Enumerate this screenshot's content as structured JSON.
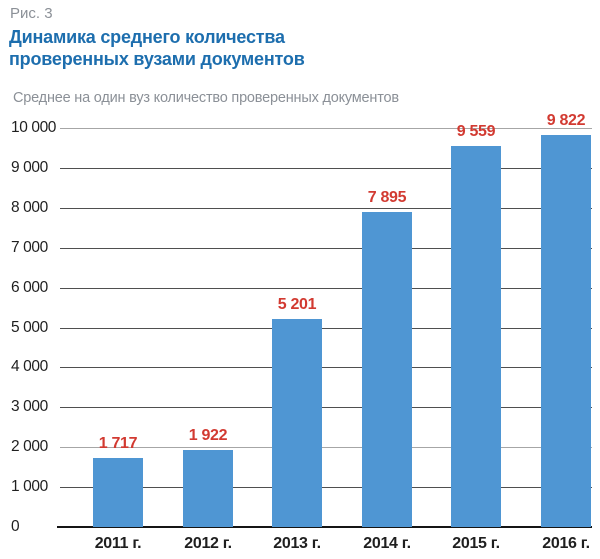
{
  "figure_label": "Рис. 3",
  "title_line1": "Динамика среднего количества",
  "title_line2": "проверенных вузами документов",
  "subtitle": "Среднее на один вуз количество проверенных документов",
  "chart_data": {
    "type": "bar",
    "categories": [
      "2011 г.",
      "2012 г.",
      "2013 г.",
      "2014 г.",
      "2015 г.",
      "2016 г."
    ],
    "values": [
      1717,
      1922,
      5201,
      7895,
      9559,
      9822
    ],
    "value_labels": [
      "1 717",
      "1 922",
      "5 201",
      "7 895",
      "9 559",
      "9 822"
    ],
    "title": "Динамика среднего количества проверенных вузами документов",
    "xlabel": "",
    "ylabel": "Среднее на один вуз количество проверенных документов",
    "ylim": [
      0,
      10000
    ],
    "y_tick_step": 1000,
    "y_tick_labels_top_down": [
      "10 000",
      "9 000",
      "8 000",
      "7 000",
      "6 000",
      "5 000",
      "4 000",
      "3 000",
      "2 000",
      "1 000",
      "0"
    ],
    "grid": true,
    "light_gridlines_at": [
      10000,
      2000
    ],
    "legend": "none",
    "colors": {
      "bar": "#4F96D3",
      "value_label": "#D23A31",
      "gridline": "#4F4F4F",
      "gridline_light": "#A6A6A6",
      "axis_line": "#151515",
      "tick_text": "#1F1F1F",
      "title": "#1D6EAE",
      "muted_text": "#8B9097"
    }
  }
}
